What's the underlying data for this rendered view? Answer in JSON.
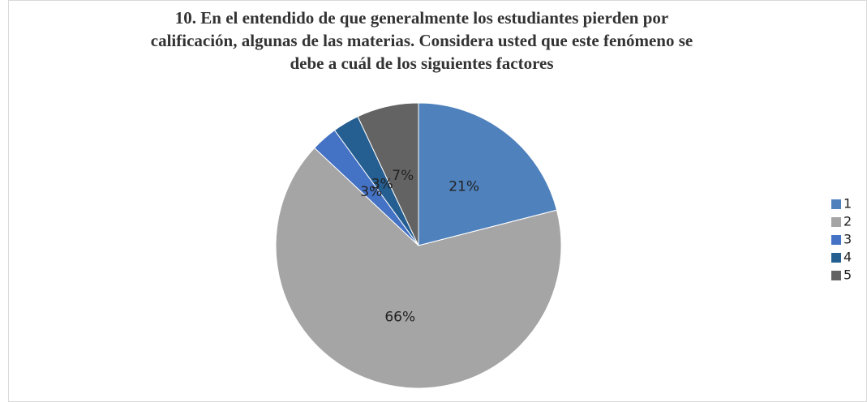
{
  "chart_data": {
    "type": "pie",
    "title": "10. En el entendido de que generalmente los estudiantes pierden por calificación, algunas de las materias. Considera usted que este fenómeno se debe a cuál de los siguientes factores",
    "categories": [
      "1",
      "2",
      "3",
      "4",
      "5"
    ],
    "values": [
      21,
      66,
      3,
      3,
      7
    ],
    "value_labels": [
      "21%",
      "66%",
      "3%",
      "3%",
      "7%"
    ],
    "colors": [
      "#4f81bd",
      "#a5a5a5",
      "#4472c4",
      "#255e91",
      "#636363"
    ],
    "legend": "right"
  }
}
